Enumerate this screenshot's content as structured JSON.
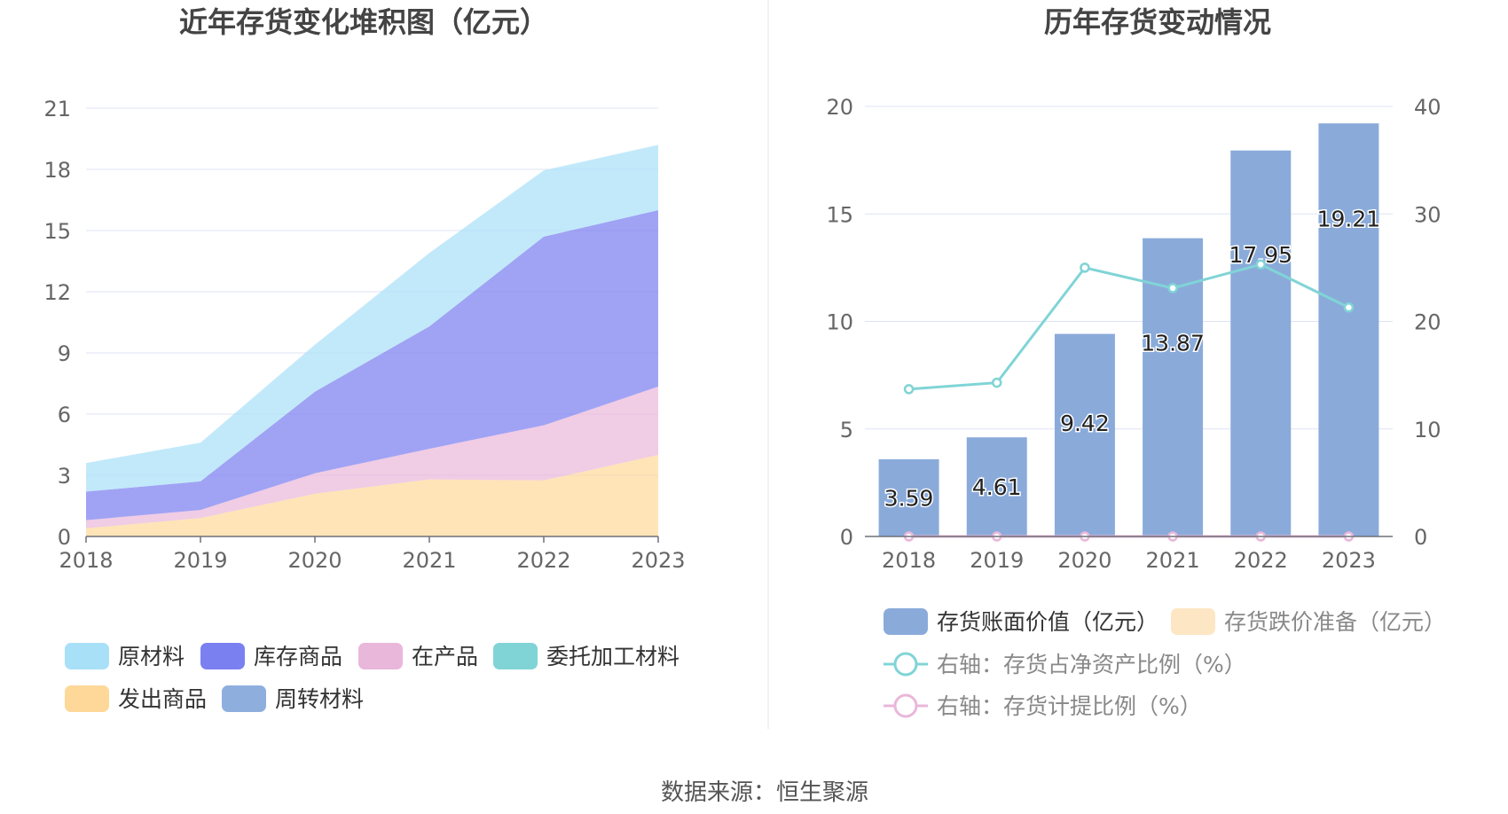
{
  "source_text": "数据来源：恒生聚源",
  "colors": {
    "raw_material": "#a8e0f8",
    "stock_goods": "#7b80f0",
    "wip": "#e9b7da",
    "consigned": "#80d4d6",
    "shipped": "#fed898",
    "turnover": "#8eaede",
    "bar": "#8aabda",
    "provision_legend": "#fde6c4",
    "ratio_line": "#80d4d6",
    "provision_line": "#e9b7da",
    "grid": "#dfe3f5",
    "axis_text": "#666666",
    "title": "#444444"
  },
  "chart_data": [
    {
      "type": "area",
      "title": "近年存货变化堆积图（亿元）",
      "x": [
        "2018",
        "2019",
        "2020",
        "2021",
        "2022",
        "2023"
      ],
      "ylim": [
        0,
        21
      ],
      "yticks": [
        "0",
        "3",
        "6",
        "9",
        "12",
        "15",
        "18",
        "21"
      ],
      "stacked": true,
      "grid": true,
      "legend_position": "bottom",
      "series": [
        {
          "name": "发出商品",
          "color_key": "shipped",
          "values": [
            0.4,
            0.9,
            2.1,
            2.8,
            2.75,
            4.0
          ]
        },
        {
          "name": "在产品",
          "color_key": "wip",
          "values": [
            0.4,
            0.4,
            1.0,
            1.5,
            2.7,
            3.35
          ]
        },
        {
          "name": "库存商品",
          "color_key": "stock_goods",
          "values": [
            1.4,
            1.4,
            4.0,
            6.0,
            9.25,
            8.65
          ]
        },
        {
          "name": "原材料",
          "color_key": "raw_material",
          "values": [
            1.4,
            1.9,
            2.3,
            3.6,
            3.25,
            3.2
          ]
        },
        {
          "name": "委托加工材料",
          "color_key": "consigned",
          "values": [
            0,
            0,
            0,
            0,
            0,
            0
          ]
        },
        {
          "name": "周转材料",
          "color_key": "turnover",
          "values": [
            0,
            0,
            0,
            0,
            0,
            0
          ]
        }
      ],
      "legend_order": [
        "原材料",
        "库存商品",
        "在产品",
        "委托加工材料",
        "发出商品",
        "周转材料"
      ]
    },
    {
      "type": "bar",
      "title": "历年存货变动情况",
      "categories": [
        "2018",
        "2019",
        "2020",
        "2021",
        "2022",
        "2023"
      ],
      "ylim_left": [
        0,
        20
      ],
      "yticks_left": [
        "0",
        "5",
        "10",
        "15",
        "20"
      ],
      "ylim_right": [
        0,
        40
      ],
      "yticks_right": [
        "0",
        "10",
        "20",
        "30",
        "40"
      ],
      "grid": true,
      "legend_position": "bottom",
      "bars": {
        "name": "存货账面价值（亿元）",
        "values": [
          3.59,
          4.61,
          9.42,
          13.87,
          17.95,
          19.21
        ],
        "labels": [
          "3.59",
          "4.61",
          "9.42",
          "13.87",
          "17.95",
          "19.21"
        ]
      },
      "provision_bars": {
        "name": "存货跌价准备（亿元）",
        "values": [
          0,
          0,
          0,
          0,
          0,
          0
        ]
      },
      "lines": [
        {
          "name": "右轴：存货占净资产比例（%）",
          "axis": "right",
          "color_key": "ratio_line",
          "values": [
            13.7,
            14.3,
            25.0,
            23.1,
            25.3,
            21.3
          ]
        },
        {
          "name": "右轴：存货计提比例（%）",
          "axis": "right",
          "color_key": "provision_line",
          "values": [
            0,
            0,
            0,
            0,
            0,
            0
          ]
        }
      ]
    }
  ]
}
